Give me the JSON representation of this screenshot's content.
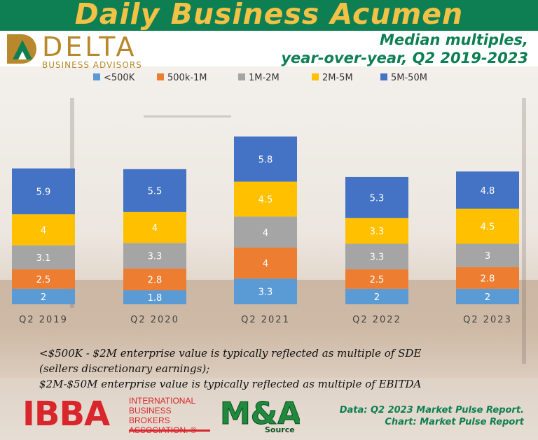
{
  "header": {
    "banner_title": "Daily Business Acumen",
    "subtitle_line1": "Median multiples,",
    "subtitle_line2": "year-over-year, Q2 2019-2023"
  },
  "logo": {
    "word": "DELTA",
    "sub": "BUSINESS ADVISORS"
  },
  "colors": {
    "banner": "#0d7f52",
    "title": "#f2c146",
    "logo_gold": "#b9882d",
    "ibba_red": "#d9262c"
  },
  "chart_data": {
    "type": "bar",
    "stacked": true,
    "title": "Median multiples, year-over-year, Q2 2019-2023",
    "categories": [
      "Q2 2019",
      "Q2 2020",
      "Q2 2021",
      "Q2 2022",
      "Q2 2023"
    ],
    "series": [
      {
        "name": "<500K",
        "color": "#5b9bd5",
        "values": [
          2,
          1.8,
          3.3,
          2,
          2
        ]
      },
      {
        "name": "500k-1M",
        "color": "#ed7d31",
        "values": [
          2.5,
          2.8,
          4,
          2.5,
          2.8
        ]
      },
      {
        "name": "1M-2M",
        "color": "#a5a5a5",
        "values": [
          3.1,
          3.3,
          4,
          3.3,
          3
        ]
      },
      {
        "name": "2M-5M",
        "color": "#ffc000",
        "values": [
          4,
          4,
          4.5,
          3.3,
          4.5
        ]
      },
      {
        "name": "5M-50M",
        "color": "#4472c4",
        "values": [
          5.9,
          5.5,
          5.8,
          5.3,
          4.8
        ]
      }
    ],
    "legend_position": "top",
    "gridlines": false
  },
  "notes": {
    "line1": "<$500K - $2M enterprise value is typically reflected as multiple of SDE",
    "line2": "(sellers discretionary earnings);",
    "line3": "$2M-$50M enterprise value is typically reflected as multiple of EBITDA"
  },
  "ibba": {
    "letters": "IBBA",
    "line1": "INTERNATIONAL",
    "line2": "BUSINESS BROKERS",
    "line3": "ASSOCIATION. ®"
  },
  "ma": {
    "letters": "M&A",
    "source": "Source"
  },
  "credit": {
    "line1": "Data: Q2 2023 Market Pulse Report.",
    "line2": "Chart: Market Pulse Report"
  }
}
